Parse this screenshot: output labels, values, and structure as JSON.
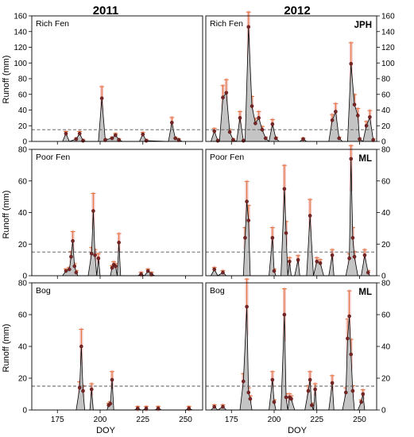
{
  "figure": {
    "col_titles": [
      "2011",
      "2012"
    ],
    "xlabel": "DOY",
    "ylabel": "Runoff (mm)"
  },
  "chart_data": [
    {
      "type": "area",
      "row": "Rich Fen",
      "year": "2011",
      "label": "Rich Fen",
      "corner": "",
      "xlim": [
        160,
        260
      ],
      "ylim": [
        0,
        160
      ],
      "yticks": [
        0,
        20,
        40,
        60,
        80,
        100,
        120,
        140,
        160
      ],
      "threshold": 15,
      "points": [
        [
          178,
          0
        ],
        [
          180,
          10
        ],
        [
          182,
          0
        ],
        [
          186,
          3
        ],
        [
          188,
          10
        ],
        [
          190,
          1
        ],
        [
          192,
          0
        ],
        [
          199,
          0
        ],
        [
          201,
          55
        ],
        [
          203,
          2
        ],
        [
          207,
          4
        ],
        [
          209,
          8
        ],
        [
          211,
          2
        ],
        [
          213,
          0
        ],
        [
          223,
          0
        ],
        [
          225,
          9
        ],
        [
          227,
          1
        ],
        [
          240,
          0
        ],
        [
          242,
          24
        ],
        [
          244,
          4
        ],
        [
          246,
          2
        ],
        [
          248,
          0
        ]
      ]
    },
    {
      "type": "area",
      "row": "Rich Fen",
      "year": "2012",
      "label": "Rich Fen",
      "corner": "JPH",
      "xlim": [
        160,
        260
      ],
      "ylim": [
        0,
        160
      ],
      "yticks": [
        0,
        20,
        40,
        60,
        80,
        100,
        120,
        140,
        160
      ],
      "threshold": 15,
      "points": [
        [
          163,
          0
        ],
        [
          165,
          13
        ],
        [
          167,
          1
        ],
        [
          168,
          0
        ],
        [
          170,
          56
        ],
        [
          172,
          62
        ],
        [
          174,
          12
        ],
        [
          176,
          2
        ],
        [
          178,
          0
        ],
        [
          180,
          30
        ],
        [
          182,
          1
        ],
        [
          183,
          0
        ],
        [
          185,
          146
        ],
        [
          187,
          45
        ],
        [
          189,
          23
        ],
        [
          191,
          30
        ],
        [
          193,
          15
        ],
        [
          195,
          4
        ],
        [
          197,
          0
        ],
        [
          199,
          22
        ],
        [
          201,
          4
        ],
        [
          203,
          0
        ],
        [
          215,
          0
        ],
        [
          217,
          3
        ],
        [
          219,
          0
        ],
        [
          232,
          0
        ],
        [
          234,
          27
        ],
        [
          236,
          38
        ],
        [
          238,
          4
        ],
        [
          240,
          0
        ],
        [
          243,
          0
        ],
        [
          245,
          99
        ],
        [
          247,
          47
        ],
        [
          249,
          33
        ],
        [
          250,
          3
        ],
        [
          252,
          0
        ],
        [
          254,
          20
        ],
        [
          256,
          31
        ],
        [
          258,
          2
        ]
      ]
    },
    {
      "type": "area",
      "row": "Poor Fen",
      "year": "2011",
      "label": "Poor Fen",
      "corner": "",
      "xlim": [
        160,
        260
      ],
      "ylim": [
        0,
        80
      ],
      "yticks": [
        0,
        20,
        40,
        60,
        80
      ],
      "threshold": 15,
      "points": [
        [
          178,
          0
        ],
        [
          180,
          3
        ],
        [
          182,
          4
        ],
        [
          183,
          12
        ],
        [
          184,
          22
        ],
        [
          185,
          6
        ],
        [
          186,
          2
        ],
        [
          187,
          0
        ],
        [
          193,
          0
        ],
        [
          195,
          14
        ],
        [
          196,
          41
        ],
        [
          197,
          13
        ],
        [
          198,
          0
        ],
        [
          199,
          11
        ],
        [
          200,
          0
        ],
        [
          206,
          0
        ],
        [
          207,
          5
        ],
        [
          208,
          7
        ],
        [
          209,
          6
        ],
        [
          210,
          0
        ],
        [
          211,
          21
        ],
        [
          212,
          0
        ],
        [
          222,
          0
        ],
        [
          224,
          1
        ],
        [
          226,
          0
        ],
        [
          228,
          3
        ],
        [
          230,
          1
        ],
        [
          232,
          0
        ]
      ]
    },
    {
      "type": "area",
      "row": "Poor Fen",
      "year": "2012",
      "label": "Poor Fen",
      "corner": "ML",
      "xlim": [
        160,
        260
      ],
      "ylim": [
        0,
        80
      ],
      "yticks": [
        0,
        20,
        40,
        60,
        80
      ],
      "threshold": 15,
      "points": [
        [
          163,
          0
        ],
        [
          165,
          4
        ],
        [
          167,
          0
        ],
        [
          170,
          2
        ],
        [
          172,
          0
        ],
        [
          182,
          0
        ],
        [
          183,
          24
        ],
        [
          184,
          47
        ],
        [
          185,
          35
        ],
        [
          186,
          0
        ],
        [
          197,
          0
        ],
        [
          199,
          24
        ],
        [
          200,
          3
        ],
        [
          201,
          0
        ],
        [
          204,
          0
        ],
        [
          206,
          55
        ],
        [
          207,
          27
        ],
        [
          208,
          0
        ],
        [
          209,
          9
        ],
        [
          210,
          0
        ],
        [
          212,
          0
        ],
        [
          214,
          10
        ],
        [
          215,
          0
        ],
        [
          219,
          0
        ],
        [
          221,
          38
        ],
        [
          223,
          0
        ],
        [
          225,
          9
        ],
        [
          227,
          8
        ],
        [
          229,
          0
        ],
        [
          232,
          0
        ],
        [
          234,
          13
        ],
        [
          235,
          0
        ],
        [
          242,
          0
        ],
        [
          244,
          11
        ],
        [
          245,
          74
        ],
        [
          246,
          24
        ],
        [
          247,
          12
        ],
        [
          249,
          0
        ],
        [
          251,
          0
        ],
        [
          253,
          13
        ],
        [
          255,
          2
        ],
        [
          256,
          0
        ]
      ]
    },
    {
      "type": "area",
      "row": "Bog",
      "year": "2011",
      "label": "Bog",
      "corner": "",
      "xlim": [
        160,
        260
      ],
      "ylim": [
        0,
        80
      ],
      "yticks": [
        0,
        20,
        40,
        60,
        80
      ],
      "threshold": 15,
      "points": [
        [
          186,
          0
        ],
        [
          188,
          14
        ],
        [
          189,
          40
        ],
        [
          190,
          12
        ],
        [
          191,
          0
        ],
        [
          194,
          0
        ],
        [
          195,
          13
        ],
        [
          196,
          0
        ],
        [
          204,
          0
        ],
        [
          205,
          3
        ],
        [
          206,
          4
        ],
        [
          207,
          19
        ],
        [
          208,
          0
        ],
        [
          220,
          0
        ],
        [
          222,
          1
        ],
        [
          224,
          0
        ],
        [
          225,
          0
        ],
        [
          227,
          1
        ],
        [
          228,
          0
        ],
        [
          232,
          0
        ],
        [
          234,
          1
        ],
        [
          236,
          0
        ],
        [
          250,
          0
        ],
        [
          252,
          1
        ],
        [
          254,
          0
        ]
      ]
    },
    {
      "type": "area",
      "row": "Bog",
      "year": "2012",
      "label": "Bog",
      "corner": "ML",
      "xlim": [
        160,
        260
      ],
      "ylim": [
        0,
        80
      ],
      "yticks": [
        0,
        20,
        40,
        60,
        80
      ],
      "threshold": 15,
      "points": [
        [
          163,
          0
        ],
        [
          165,
          2
        ],
        [
          167,
          0
        ],
        [
          170,
          2
        ],
        [
          172,
          0
        ],
        [
          180,
          0
        ],
        [
          182,
          18
        ],
        [
          184,
          65
        ],
        [
          185,
          11
        ],
        [
          186,
          7
        ],
        [
          187,
          0
        ],
        [
          197,
          0
        ],
        [
          199,
          19
        ],
        [
          200,
          5
        ],
        [
          201,
          0
        ],
        [
          204,
          0
        ],
        [
          206,
          60
        ],
        [
          207,
          8
        ],
        [
          208,
          0
        ],
        [
          209,
          8
        ],
        [
          210,
          7
        ],
        [
          212,
          0
        ],
        [
          218,
          0
        ],
        [
          220,
          12
        ],
        [
          221,
          19
        ],
        [
          222,
          3
        ],
        [
          223,
          0
        ],
        [
          224,
          13
        ],
        [
          225,
          0
        ],
        [
          232,
          0
        ],
        [
          234,
          17
        ],
        [
          235,
          0
        ],
        [
          240,
          0
        ],
        [
          242,
          11
        ],
        [
          243,
          45
        ],
        [
          244,
          59
        ],
        [
          245,
          35
        ],
        [
          246,
          12
        ],
        [
          247,
          0
        ],
        [
          249,
          0
        ],
        [
          251,
          5
        ],
        [
          252,
          10
        ],
        [
          253,
          0
        ]
      ]
    }
  ],
  "colors": {
    "fill": "#c4c4c4",
    "line": "#000000",
    "marker": "#7a2424",
    "error_bar": "#e36a2c",
    "error_glow": "#f3c6c6",
    "threshold": "#555555"
  }
}
